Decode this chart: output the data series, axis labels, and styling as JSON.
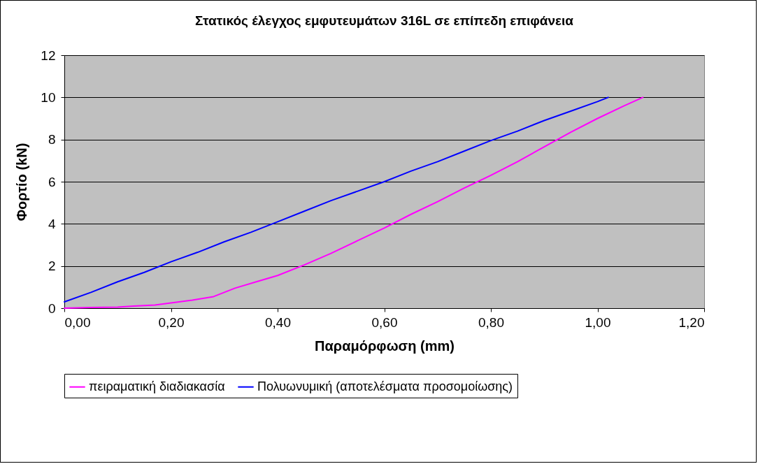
{
  "chart_data": {
    "type": "line",
    "title": "Στατικός έλεγχος εμφυτευμάτων 316L σε επίπεδη επιφάνεια",
    "xlabel": "Παραμόρφωση (mm)",
    "ylabel": "Φορτίο (kN)",
    "series": [
      {
        "name": "πειραματική διαδιακασία",
        "color": "#ff00ff",
        "x": [
          0,
          0.05,
          0.1,
          0.13,
          0.17,
          0.2,
          0.24,
          0.28,
          0.32,
          0.36,
          0.4,
          0.45,
          0.5,
          0.55,
          0.6,
          0.65,
          0.7,
          0.75,
          0.8,
          0.85,
          0.9,
          0.95,
          1.0,
          1.05,
          1.085
        ],
        "values": [
          0,
          0.03,
          0.05,
          0.1,
          0.15,
          0.25,
          0.38,
          0.55,
          0.95,
          1.25,
          1.55,
          2.05,
          2.6,
          3.2,
          3.8,
          4.45,
          5.05,
          5.7,
          6.3,
          6.95,
          7.65,
          8.35,
          9.0,
          9.6,
          10
        ]
      },
      {
        "name": "Πολυωνυμική (αποτελέσματα προσομοίωσης)",
        "color": "#0000ff",
        "x": [
          0,
          0.05,
          0.1,
          0.15,
          0.2,
          0.25,
          0.3,
          0.35,
          0.4,
          0.45,
          0.5,
          0.55,
          0.6,
          0.65,
          0.7,
          0.75,
          0.8,
          0.85,
          0.9,
          0.95,
          1.0,
          1.02
        ],
        "values": [
          0.3,
          0.75,
          1.25,
          1.7,
          2.2,
          2.65,
          3.15,
          3.6,
          4.1,
          4.6,
          5.1,
          5.55,
          6.0,
          6.5,
          6.95,
          7.45,
          7.95,
          8.4,
          8.9,
          9.35,
          9.8,
          10
        ]
      }
    ],
    "xlim": [
      0,
      1.2
    ],
    "xticks": [
      {
        "value": 0,
        "label": "0,00"
      },
      {
        "value": 0.2,
        "label": "0,20"
      },
      {
        "value": 0.4,
        "label": "0,40"
      },
      {
        "value": 0.6,
        "label": "0,60"
      },
      {
        "value": 0.8,
        "label": "0,80"
      },
      {
        "value": 1.0,
        "label": "1,00"
      },
      {
        "value": 1.2,
        "label": "1,20"
      }
    ],
    "ylim": [
      0,
      12
    ],
    "yticks": [
      0,
      2,
      4,
      6,
      8,
      10,
      12
    ],
    "grid": "y",
    "legend": "bottom",
    "marker": "none",
    "line_style": "solid"
  }
}
